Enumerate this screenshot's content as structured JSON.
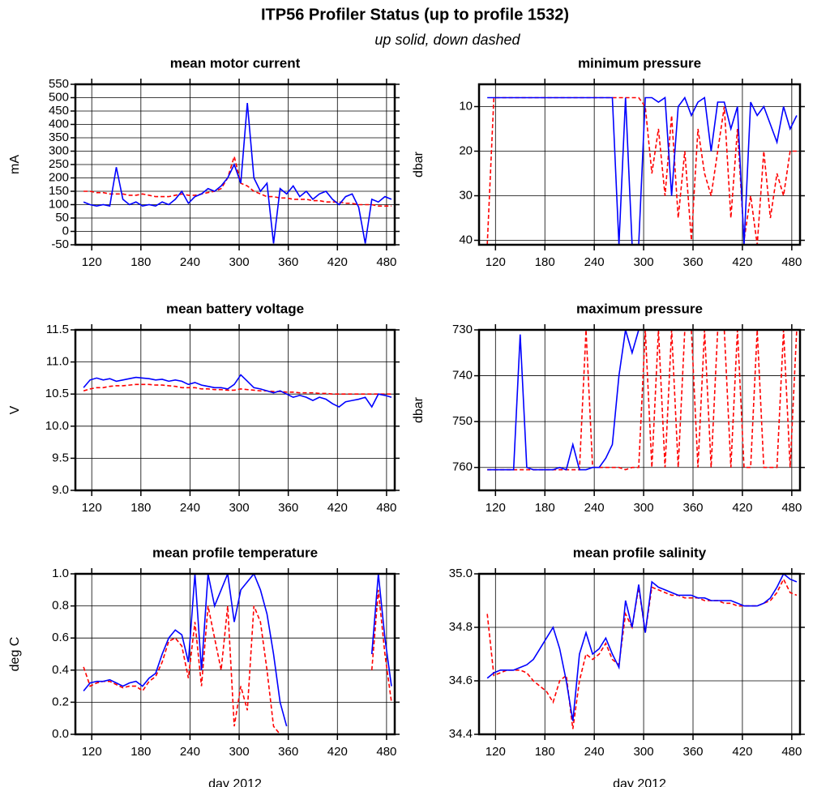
{
  "header": {
    "title": "ITP56 Profiler Status (up to profile 1532)",
    "subtitle": "up solid, down dashed"
  },
  "chart_data": [
    {
      "type": "line",
      "title": "mean motor current",
      "ylabel": "mA",
      "x": [
        110,
        118,
        126,
        134,
        142,
        150,
        158,
        166,
        174,
        182,
        190,
        198,
        206,
        214,
        222,
        230,
        238,
        246,
        254,
        262,
        270,
        278,
        286,
        294,
        302,
        310,
        318,
        326,
        334,
        342,
        350,
        358,
        366,
        374,
        382,
        390,
        398,
        406,
        414,
        422,
        430,
        438,
        446,
        454,
        462,
        470,
        478,
        486
      ],
      "xlim": [
        100,
        490
      ],
      "xticks": [
        120,
        180,
        240,
        300,
        360,
        420,
        480
      ],
      "ylim": [
        -50,
        550
      ],
      "yticks": [
        -50,
        0,
        50,
        100,
        150,
        200,
        250,
        300,
        350,
        400,
        450,
        500,
        550
      ],
      "grid": true,
      "series": [
        {
          "color": "#ff0000",
          "dash": true,
          "values": [
            150,
            150,
            145,
            145,
            140,
            140,
            140,
            135,
            135,
            140,
            135,
            130,
            130,
            130,
            135,
            140,
            135,
            135,
            140,
            145,
            150,
            160,
            200,
            280,
            180,
            170,
            150,
            140,
            130,
            130,
            125,
            125,
            120,
            120,
            120,
            115,
            115,
            110,
            110,
            110,
            105,
            105,
            100,
            100,
            100,
            95,
            95,
            95
          ]
        },
        {
          "color": "#0000ff",
          "dash": false,
          "values": [
            110,
            100,
            95,
            100,
            95,
            240,
            120,
            100,
            110,
            95,
            100,
            95,
            110,
            100,
            120,
            150,
            105,
            130,
            140,
            160,
            150,
            170,
            200,
            250,
            180,
            480,
            200,
            150,
            180,
            -45,
            160,
            140,
            170,
            130,
            150,
            120,
            140,
            150,
            120,
            100,
            130,
            140,
            90,
            -45,
            120,
            110,
            130,
            120
          ]
        }
      ]
    },
    {
      "type": "line",
      "title": "minimum pressure",
      "ylabel": "dbar",
      "x": [
        110,
        118,
        126,
        134,
        142,
        150,
        158,
        166,
        174,
        182,
        190,
        198,
        206,
        214,
        222,
        230,
        238,
        246,
        254,
        262,
        270,
        278,
        286,
        294,
        302,
        310,
        318,
        326,
        334,
        342,
        350,
        358,
        366,
        374,
        382,
        390,
        398,
        406,
        414,
        422,
        430,
        438,
        446,
        454,
        462,
        470,
        478,
        486
      ],
      "xlim": [
        100,
        490
      ],
      "xticks": [
        120,
        180,
        240,
        300,
        360,
        420,
        480
      ],
      "ylim": [
        41,
        5
      ],
      "yticks": [
        10,
        20,
        30,
        40
      ],
      "grid": true,
      "series": [
        {
          "color": "#ff0000",
          "dash": true,
          "values": [
            41,
            8,
            8,
            8,
            8,
            8,
            8,
            8,
            8,
            8,
            8,
            8,
            8,
            8,
            8,
            8,
            8,
            8,
            8,
            8,
            8,
            8,
            8,
            8,
            10,
            25,
            15,
            30,
            12,
            35,
            20,
            40,
            15,
            25,
            30,
            20,
            10,
            35,
            15,
            40,
            30,
            41,
            20,
            35,
            25,
            30,
            20,
            20
          ]
        },
        {
          "color": "#0000ff",
          "dash": false,
          "values": [
            8,
            8,
            8,
            8,
            8,
            8,
            8,
            8,
            8,
            8,
            8,
            8,
            8,
            8,
            8,
            8,
            8,
            8,
            8,
            8,
            41,
            8,
            41,
            41,
            8,
            8,
            9,
            8,
            30,
            10,
            8,
            12,
            9,
            8,
            20,
            9,
            9,
            15,
            10,
            41,
            9,
            12,
            10,
            14,
            18,
            10,
            15,
            12
          ]
        }
      ]
    },
    {
      "type": "line",
      "title": "mean battery voltage",
      "ylabel": "V",
      "x": [
        110,
        118,
        126,
        134,
        142,
        150,
        158,
        166,
        174,
        182,
        190,
        198,
        206,
        214,
        222,
        230,
        238,
        246,
        254,
        262,
        270,
        278,
        286,
        294,
        302,
        310,
        318,
        326,
        334,
        342,
        350,
        358,
        366,
        374,
        382,
        390,
        398,
        406,
        414,
        422,
        430,
        438,
        446,
        454,
        462,
        470,
        478,
        486
      ],
      "xlim": [
        100,
        490
      ],
      "xticks": [
        120,
        180,
        240,
        300,
        360,
        420,
        480
      ],
      "ylim": [
        9,
        11.5
      ],
      "yticks": [
        {
          "value": 9,
          "label": "9.0"
        },
        9.5,
        {
          "value": 10,
          "label": "10.0"
        },
        10.5,
        {
          "value": 11,
          "label": "11.0"
        },
        11.5
      ],
      "grid": true,
      "series": [
        {
          "color": "#ff0000",
          "dash": true,
          "values": [
            10.55,
            10.58,
            10.6,
            10.6,
            10.62,
            10.63,
            10.63,
            10.64,
            10.65,
            10.65,
            10.65,
            10.64,
            10.64,
            10.63,
            10.62,
            10.6,
            10.6,
            10.6,
            10.58,
            10.58,
            10.57,
            10.57,
            10.56,
            10.56,
            10.58,
            10.57,
            10.56,
            10.55,
            10.55,
            10.54,
            10.54,
            10.53,
            10.53,
            10.52,
            10.52,
            10.52,
            10.51,
            10.51,
            10.5,
            10.5,
            10.5,
            10.5,
            10.5,
            10.5,
            10.5,
            10.5,
            10.5,
            10.5
          ]
        },
        {
          "color": "#0000ff",
          "dash": false,
          "values": [
            10.6,
            10.72,
            10.75,
            10.72,
            10.74,
            10.7,
            10.72,
            10.74,
            10.76,
            10.75,
            10.74,
            10.72,
            10.73,
            10.7,
            10.72,
            10.7,
            10.65,
            10.68,
            10.64,
            10.62,
            10.6,
            10.6,
            10.58,
            10.65,
            10.8,
            10.7,
            10.6,
            10.58,
            10.55,
            10.52,
            10.55,
            10.5,
            10.45,
            10.48,
            10.45,
            10.4,
            10.45,
            10.42,
            10.35,
            10.3,
            10.38,
            10.4,
            10.42,
            10.45,
            10.3,
            10.5,
            10.48,
            10.45
          ]
        }
      ]
    },
    {
      "type": "line",
      "title": "maximum pressure",
      "ylabel": "dbar",
      "x": [
        110,
        118,
        126,
        134,
        142,
        150,
        158,
        166,
        174,
        182,
        190,
        198,
        206,
        214,
        222,
        230,
        238,
        246,
        254,
        262,
        270,
        278,
        286,
        294,
        302,
        310,
        318,
        326,
        334,
        342,
        350,
        358,
        366,
        374,
        382,
        390,
        398,
        406,
        414,
        422,
        430,
        438,
        446,
        454,
        462,
        470,
        478,
        486
      ],
      "xlim": [
        100,
        490
      ],
      "xticks": [
        120,
        180,
        240,
        300,
        360,
        420,
        480
      ],
      "ylim": [
        765,
        730
      ],
      "yticks": [
        730,
        740,
        750,
        760
      ],
      "grid": true,
      "series": [
        {
          "color": "#ff0000",
          "dash": true,
          "values": [
            760.5,
            760.5,
            760.5,
            760.5,
            760.5,
            760.5,
            760.5,
            760.5,
            760.5,
            760.5,
            760.5,
            760.5,
            760.5,
            760.5,
            760.5,
            730,
            760,
            760,
            760,
            760,
            760,
            760.5,
            760,
            760,
            730,
            760,
            730,
            760,
            730,
            760,
            730,
            730,
            760,
            730,
            760,
            730,
            730,
            760,
            730,
            760,
            760,
            730,
            760,
            760,
            760,
            730,
            760,
            730
          ]
        },
        {
          "color": "#0000ff",
          "dash": false,
          "values": [
            760.5,
            760.5,
            760.5,
            760.5,
            760.5,
            731,
            760,
            760.5,
            760.5,
            760.5,
            760.5,
            760,
            760.5,
            755,
            760.5,
            760.5,
            760,
            760,
            758,
            755,
            740,
            730,
            735,
            730,
            null,
            null,
            null,
            null,
            null,
            null,
            null,
            null,
            null,
            null,
            null,
            null,
            null,
            null,
            null,
            null,
            null,
            null,
            null,
            null,
            null,
            null,
            null,
            null
          ]
        }
      ]
    },
    {
      "type": "line",
      "title": "mean profile temperature",
      "ylabel": "deg C",
      "xlabel": "day 2012",
      "x": [
        110,
        118,
        126,
        134,
        142,
        150,
        158,
        166,
        174,
        182,
        190,
        198,
        206,
        214,
        222,
        230,
        238,
        246,
        254,
        262,
        270,
        278,
        286,
        294,
        302,
        310,
        318,
        326,
        334,
        342,
        350,
        358,
        366,
        374,
        382,
        390,
        398,
        406,
        414,
        422,
        430,
        438,
        446,
        454,
        462,
        470,
        478,
        486
      ],
      "xlim": [
        100,
        490
      ],
      "xticks": [
        120,
        180,
        240,
        300,
        360,
        420,
        480
      ],
      "ylim": [
        0,
        1
      ],
      "yticks": [
        {
          "value": 0,
          "label": "0.0"
        },
        0.2,
        0.4,
        0.6,
        0.8,
        {
          "value": 1,
          "label": "1.0"
        }
      ],
      "grid": true,
      "series": [
        {
          "color": "#ff0000",
          "dash": true,
          "values": [
            0.42,
            0.3,
            0.32,
            0.33,
            0.33,
            0.31,
            0.29,
            0.3,
            0.3,
            0.27,
            0.33,
            0.36,
            0.45,
            0.58,
            0.6,
            0.55,
            0.35,
            0.7,
            0.3,
            0.8,
            0.6,
            0.4,
            0.8,
            0.05,
            0.3,
            0.15,
            0.8,
            0.7,
            0.4,
            0.05,
            0.0,
            null,
            null,
            null,
            null,
            null,
            null,
            null,
            null,
            null,
            null,
            null,
            null,
            null,
            0.4,
            0.9,
            0.5,
            0.2
          ]
        },
        {
          "color": "#0000ff",
          "dash": false,
          "values": [
            0.27,
            0.32,
            0.33,
            0.33,
            0.34,
            0.32,
            0.3,
            0.32,
            0.33,
            0.3,
            0.35,
            0.38,
            0.5,
            0.6,
            0.65,
            0.62,
            0.45,
            1.0,
            0.4,
            1.0,
            0.8,
            0.9,
            1.0,
            0.7,
            0.9,
            0.95,
            1.0,
            0.9,
            0.75,
            0.5,
            0.2,
            0.05,
            null,
            null,
            null,
            null,
            null,
            null,
            null,
            null,
            null,
            null,
            null,
            null,
            0.5,
            1.0,
            0.6,
            0.3
          ]
        }
      ]
    },
    {
      "type": "line",
      "title": "mean profile salinity",
      "xlabel": "day 2012",
      "x": [
        110,
        118,
        126,
        134,
        142,
        150,
        158,
        166,
        174,
        182,
        190,
        198,
        206,
        214,
        222,
        230,
        238,
        246,
        254,
        262,
        270,
        278,
        286,
        294,
        302,
        310,
        318,
        326,
        334,
        342,
        350,
        358,
        366,
        374,
        382,
        390,
        398,
        406,
        414,
        422,
        430,
        438,
        446,
        454,
        462,
        470,
        478,
        486
      ],
      "xlim": [
        100,
        490
      ],
      "xticks": [
        120,
        180,
        240,
        300,
        360,
        420,
        480
      ],
      "ylim": [
        34.4,
        35
      ],
      "yticks": [
        34.4,
        34.6,
        34.8,
        {
          "value": 35,
          "label": "35.0"
        }
      ],
      "grid": true,
      "series": [
        {
          "color": "#ff0000",
          "dash": true,
          "values": [
            34.85,
            34.62,
            34.63,
            34.64,
            34.64,
            34.64,
            34.63,
            34.6,
            34.58,
            34.56,
            34.52,
            34.6,
            34.62,
            34.42,
            34.6,
            34.7,
            34.68,
            34.7,
            34.74,
            34.68,
            34.66,
            34.85,
            34.8,
            34.95,
            34.78,
            34.95,
            34.94,
            34.93,
            34.92,
            34.92,
            34.91,
            34.91,
            34.91,
            34.9,
            34.9,
            34.9,
            34.89,
            34.89,
            34.88,
            34.88,
            34.88,
            34.88,
            34.89,
            34.9,
            34.93,
            34.98,
            34.93,
            34.92
          ]
        },
        {
          "color": "#0000ff",
          "dash": false,
          "values": [
            34.61,
            34.63,
            34.64,
            34.64,
            34.64,
            34.65,
            34.66,
            34.68,
            34.72,
            34.76,
            34.8,
            34.72,
            34.6,
            34.45,
            34.7,
            34.78,
            34.7,
            34.72,
            34.76,
            34.7,
            34.65,
            34.9,
            34.8,
            34.96,
            34.78,
            34.97,
            34.95,
            34.94,
            34.93,
            34.92,
            34.92,
            34.92,
            34.91,
            34.91,
            34.9,
            34.9,
            34.9,
            34.9,
            34.89,
            34.88,
            34.88,
            34.88,
            34.89,
            34.91,
            34.95,
            35.0,
            34.98,
            34.97
          ]
        }
      ]
    }
  ]
}
